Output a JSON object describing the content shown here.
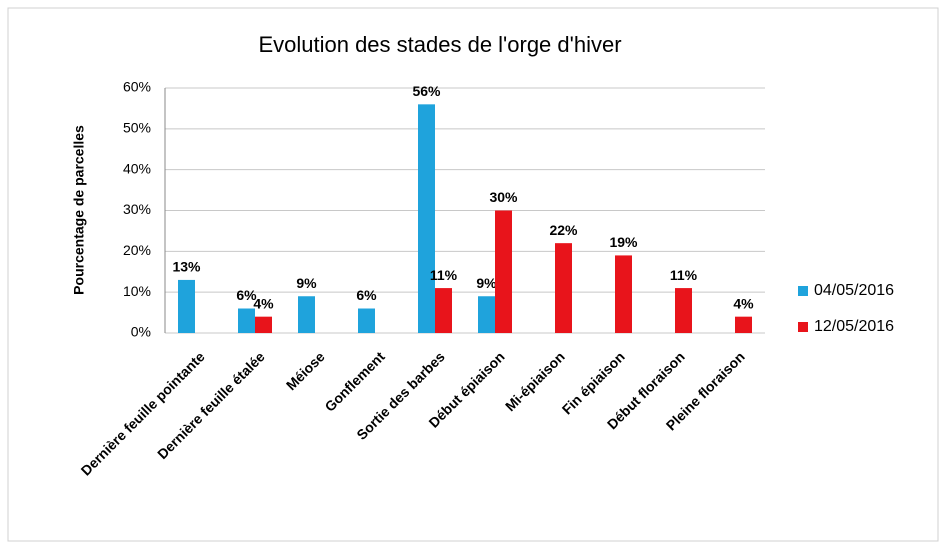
{
  "chart_data": {
    "type": "bar",
    "title": "Evolution des stades de l'orge d'hiver",
    "y_label": "Pourcentage de parcelles",
    "categories": [
      "Dernière feuille pointante",
      "Dernière feuille étalée",
      "Méiose",
      "Gonflement",
      "Sortie des barbes",
      "Début épiaison",
      "Mi-épiaison",
      "Fin épiaison",
      "Début floraison",
      "Pleine floraison"
    ],
    "series": [
      {
        "name": "04/05/2016",
        "color": "#1fa3dc",
        "values": [
          13,
          6,
          9,
          6,
          56,
          9,
          null,
          null,
          null,
          null
        ],
        "value_labels": [
          "13%",
          "6%",
          "9%",
          "6%",
          "56%",
          "9%",
          null,
          null,
          null,
          null
        ]
      },
      {
        "name": "12/05/2016",
        "color": "#e8141b",
        "values": [
          null,
          4,
          null,
          null,
          11,
          30,
          22,
          19,
          11,
          4
        ],
        "value_labels": [
          null,
          "4%",
          null,
          null,
          "11%",
          "30%",
          "22%",
          "19%",
          "11%",
          "4%"
        ]
      }
    ],
    "ylim": [
      0,
      60
    ],
    "yticks": [
      {
        "value": 0,
        "label": "0%"
      },
      {
        "value": 10,
        "label": "10%"
      },
      {
        "value": 20,
        "label": "20%"
      },
      {
        "value": 30,
        "label": "30%"
      },
      {
        "value": 40,
        "label": "40%"
      },
      {
        "value": 50,
        "label": "50%"
      },
      {
        "value": 60,
        "label": "60%"
      }
    ],
    "grid": true,
    "legend": "right"
  }
}
